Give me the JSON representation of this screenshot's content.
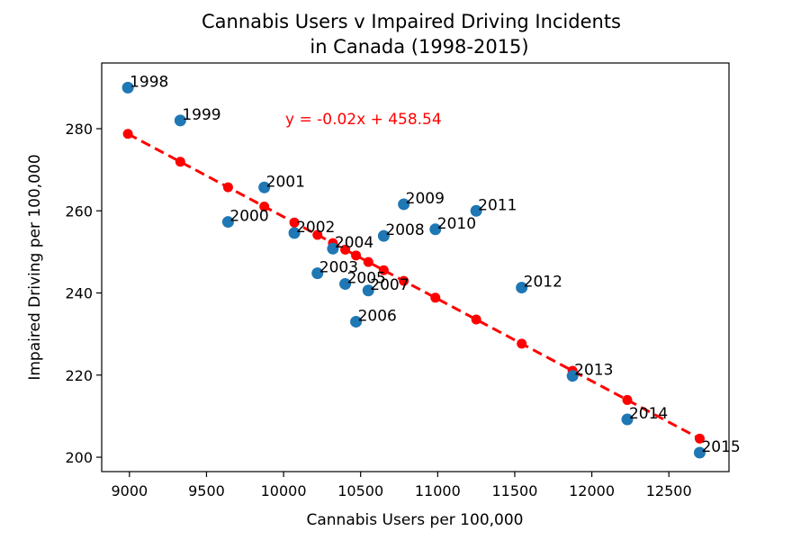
{
  "chart_data": {
    "type": "scatter",
    "title_line1": "Cannabis Users v Impaired Driving Incidents",
    "title_line2": "in Canada (1998-2015)",
    "xlabel": "Cannabis Users per 100,000",
    "ylabel": "Impaired Driving per 100,000",
    "xlim": [
      8820,
      12890
    ],
    "ylim": [
      196.5,
      296
    ],
    "xticks": [
      9000,
      9500,
      10000,
      10500,
      11000,
      11500,
      12000,
      12500
    ],
    "yticks": [
      200,
      220,
      240,
      260,
      280
    ],
    "grid": false,
    "point_color": "#1f77b4",
    "fit_color": "#ff0000",
    "equation": "y = -0.02x + 458.54",
    "fit": {
      "slope": -0.02,
      "intercept": 458.54
    },
    "points": [
      {
        "label": "1998",
        "x": 8990,
        "y": 290.0
      },
      {
        "label": "1999",
        "x": 9330,
        "y": 282.0
      },
      {
        "label": "2000",
        "x": 9640,
        "y": 257.3
      },
      {
        "label": "2001",
        "x": 9875,
        "y": 265.7
      },
      {
        "label": "2002",
        "x": 10070,
        "y": 254.6
      },
      {
        "label": "2003",
        "x": 10220,
        "y": 244.8
      },
      {
        "label": "2004",
        "x": 10320,
        "y": 250.8
      },
      {
        "label": "2005",
        "x": 10400,
        "y": 242.2
      },
      {
        "label": "2006",
        "x": 10470,
        "y": 233.0
      },
      {
        "label": "2007",
        "x": 10550,
        "y": 240.6
      },
      {
        "label": "2008",
        "x": 10650,
        "y": 253.9
      },
      {
        "label": "2009",
        "x": 10780,
        "y": 261.6
      },
      {
        "label": "2010",
        "x": 10985,
        "y": 255.5
      },
      {
        "label": "2011",
        "x": 11250,
        "y": 260.0
      },
      {
        "label": "2012",
        "x": 11545,
        "y": 241.3
      },
      {
        "label": "2013",
        "x": 11875,
        "y": 219.8
      },
      {
        "label": "2014",
        "x": 12230,
        "y": 209.2
      },
      {
        "label": "2015",
        "x": 12700,
        "y": 201.1
      }
    ]
  }
}
